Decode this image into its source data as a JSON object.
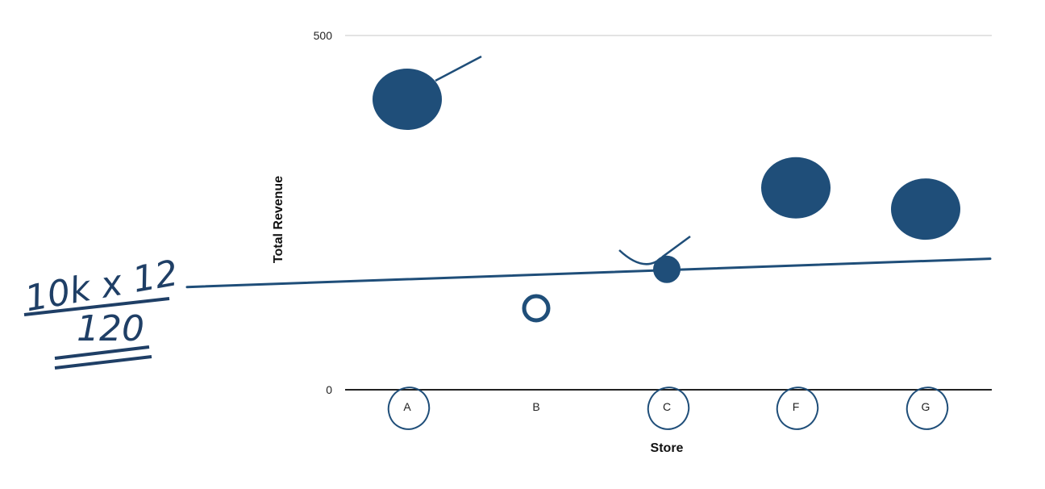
{
  "chart_data": {
    "type": "scatter",
    "title": "",
    "xlabel": "Store",
    "ylabel": "Total Revenue",
    "ylim": [
      0,
      500
    ],
    "y_ticks": [
      0,
      500
    ],
    "categories": [
      "A",
      "B",
      "C",
      "F",
      "G"
    ],
    "circled_categories": [
      "A",
      "C",
      "F",
      "G"
    ],
    "series": [
      {
        "points": [
          {
            "x": "A",
            "y": 410,
            "filled": true
          },
          {
            "x": "B",
            "y": 115,
            "filled": false
          },
          {
            "x": "C",
            "y": 170,
            "filled": true
          },
          {
            "x": "F",
            "y": 285,
            "filled": true
          },
          {
            "x": "G",
            "y": 255,
            "filled": true
          }
        ]
      }
    ],
    "reference_line": {
      "y_start": 145,
      "y_end": 185
    },
    "grid": false,
    "legend": "none",
    "ink_color": "#1f4e79"
  },
  "annotation": {
    "numerator": "10k x 12",
    "denominator": "120"
  }
}
